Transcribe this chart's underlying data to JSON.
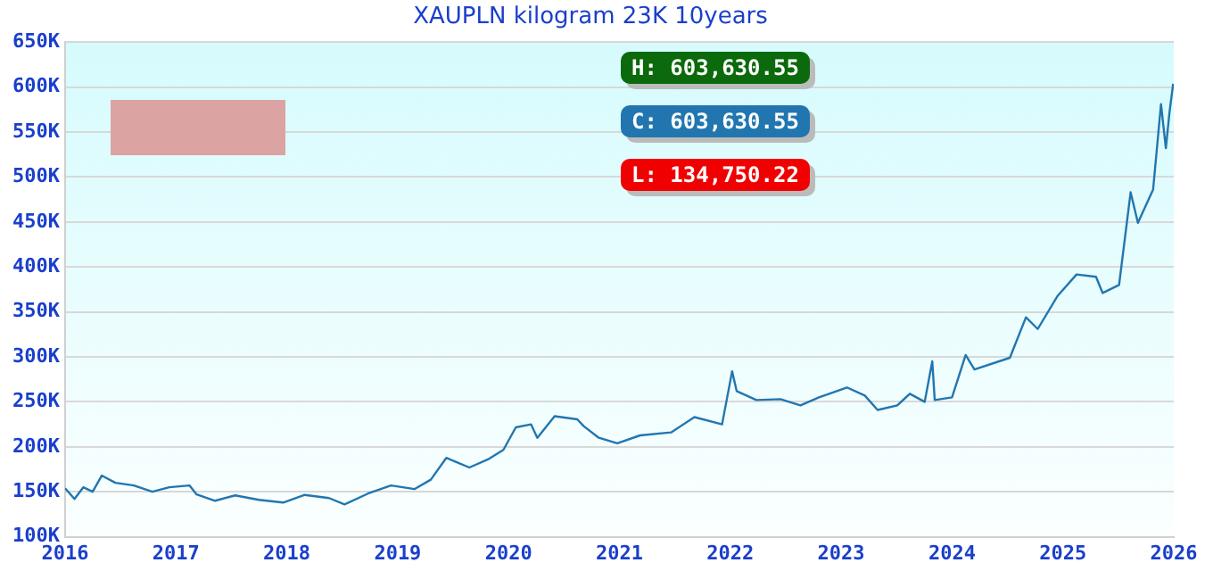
{
  "chart_data": {
    "type": "line",
    "title": "XAUPLN kilogram 23K 10years",
    "x": [
      "2016-01-01",
      "2016-02-01",
      "2016-03-01",
      "2016-04-01",
      "2016-05-01",
      "2016-06-15",
      "2016-08-15",
      "2016-10-15",
      "2016-12-10",
      "2017-02-15",
      "2017-03-10",
      "2017-05-10",
      "2017-07-15",
      "2017-10-01",
      "2017-12-20",
      "2018-03-01",
      "2018-05-20",
      "2018-07-10",
      "2018-09-25",
      "2018-12-10",
      "2019-02-25",
      "2019-04-20",
      "2019-06-10",
      "2019-08-25",
      "2019-10-25",
      "2019-12-15",
      "2020-01-25",
      "2020-03-15",
      "2020-04-05",
      "2020-06-01",
      "2020-08-15",
      "2020-09-05",
      "2020-10-25",
      "2020-12-25",
      "2021-03-10",
      "2021-06-20",
      "2021-09-05",
      "2021-12-05",
      "2022-01-07",
      "2022-01-22",
      "2022-03-28",
      "2022-06-15",
      "2022-08-20",
      "2022-10-20",
      "2023-01-20",
      "2023-03-20",
      "2023-05-01",
      "2023-07-05",
      "2023-08-15",
      "2023-10-03",
      "2023-10-28",
      "2023-11-05",
      "2024-01-01",
      "2024-02-15",
      "2024-03-15",
      "2024-07-10",
      "2024-09-01",
      "2024-10-10",
      "2024-12-15",
      "2025-02-15",
      "2025-04-20",
      "2025-05-12",
      "2025-07-05",
      "2025-08-12",
      "2025-09-05",
      "2025-10-25",
      "2025-11-20",
      "2025-12-06",
      "2025-12-18",
      "2025-12-30"
    ],
    "values": [
      154000,
      142000,
      155000,
      150000,
      168000,
      160000,
      157000,
      150000,
      155000,
      157000,
      147000,
      140000,
      146000,
      141000,
      138000,
      146500,
      143000,
      136000,
      148000,
      157000,
      153000,
      163500,
      187700,
      177000,
      186000,
      196600,
      221600,
      225000,
      210000,
      234000,
      230600,
      223000,
      210000,
      203800,
      212700,
      216000,
      233000,
      225000,
      284000,
      262000,
      252000,
      253000,
      246000,
      255000,
      266000,
      257000,
      241000,
      246000,
      259000,
      250000,
      295000,
      252000,
      255000,
      302000,
      286000,
      299000,
      344000,
      331000,
      368000,
      391600,
      389000,
      371000,
      380000,
      483000,
      449000,
      486000,
      581000,
      532000,
      572000,
      603630
    ],
    "color": "#2176b0",
    "xlim": [
      "2016-01-01",
      "2026-01-01"
    ],
    "xticks": [
      {
        "value": "2016-01-01",
        "label": "2016"
      },
      {
        "value": "2017-01-01",
        "label": "2017"
      },
      {
        "value": "2018-01-01",
        "label": "2018"
      },
      {
        "value": "2019-01-01",
        "label": "2019"
      },
      {
        "value": "2020-01-01",
        "label": "2020"
      },
      {
        "value": "2021-01-01",
        "label": "2021"
      },
      {
        "value": "2022-01-01",
        "label": "2022"
      },
      {
        "value": "2023-01-01",
        "label": "2023"
      },
      {
        "value": "2024-01-01",
        "label": "2024"
      },
      {
        "value": "2025-01-01",
        "label": "2025"
      },
      {
        "value": "2026-01-01",
        "label": "2026"
      }
    ],
    "ylim": [
      100000,
      650000
    ],
    "yticks": [
      {
        "value": 100000,
        "label": "100K"
      },
      {
        "value": 150000,
        "label": "150K"
      },
      {
        "value": 200000,
        "label": "200K"
      },
      {
        "value": 250000,
        "label": "250K"
      },
      {
        "value": 300000,
        "label": "300K"
      },
      {
        "value": 350000,
        "label": "350K"
      },
      {
        "value": 400000,
        "label": "400K"
      },
      {
        "value": 450000,
        "label": "450K"
      },
      {
        "value": 500000,
        "label": "500K"
      },
      {
        "value": 550000,
        "label": "550K"
      },
      {
        "value": 600000,
        "label": "600K"
      },
      {
        "value": 650000,
        "label": "650K"
      }
    ],
    "grid": "y",
    "annotations": [
      "H: 603,630.55",
      "C: 603,630.55",
      "L: 134,750.22"
    ]
  }
}
